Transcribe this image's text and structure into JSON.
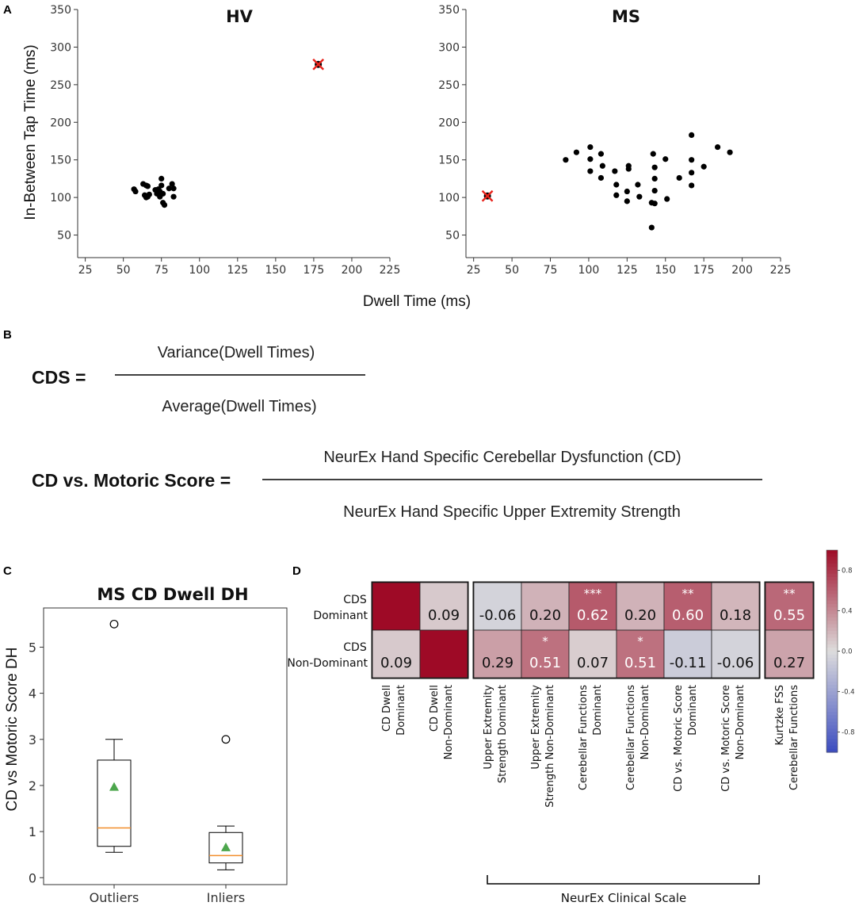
{
  "panels": {
    "A": "A",
    "B": "B",
    "C": "C",
    "D": "D"
  },
  "panel_a": {
    "shared_xlabel": "Dwell Time (ms)",
    "shared_ylabel": "In-Between Tap Time (ms)",
    "outlier_color": "#e8231b",
    "point_color": "#000000"
  },
  "formulas": {
    "cds_lhs": "CDS =",
    "cds_numerator": "Variance(Dwell Times)",
    "cds_denominator": "Average(Dwell Times)",
    "cdm_lhs": "CD vs. Motoric Score =",
    "cdm_numerator": "NeurEx Hand Specific Cerebellar Dysfunction (CD)",
    "cdm_denominator": "NeurEx Hand Specific Upper Extremity Strength"
  },
  "panel_d": {
    "bracket_label": "NeurEx Clinical Scale",
    "colors": {
      "pos": "#9e0a26",
      "neu": "#dddcdc",
      "neg": "#3b4cc0"
    }
  },
  "chart_data": [
    {
      "id": "hv",
      "type": "scatter",
      "title": "HV",
      "xlabel": "Dwell Time (ms)",
      "ylabel": "In-Between Tap Time (ms)",
      "xlim": [
        20,
        225
      ],
      "ylim": [
        20,
        350
      ],
      "xticks": [
        "25",
        "50",
        "75",
        "100",
        "125",
        "150",
        "175",
        "200",
        "225"
      ],
      "yticks": [
        "50",
        "100",
        "150",
        "200",
        "250",
        "300",
        "350"
      ],
      "points": [
        [
          57,
          111
        ],
        [
          58,
          108
        ],
        [
          63,
          118
        ],
        [
          65,
          116
        ],
        [
          66,
          115
        ],
        [
          64,
          103
        ],
        [
          65,
          100
        ],
        [
          67,
          104
        ],
        [
          66,
          101
        ],
        [
          71,
          110
        ],
        [
          72,
          105
        ],
        [
          73,
          111
        ],
        [
          74,
          108
        ],
        [
          75,
          125
        ],
        [
          75,
          116
        ],
        [
          76,
          105
        ],
        [
          74,
          101
        ],
        [
          76,
          93
        ],
        [
          77,
          90
        ],
        [
          80,
          112
        ],
        [
          82,
          118
        ],
        [
          83,
          112
        ],
        [
          83,
          101
        ]
      ],
      "outliers": [
        [
          178,
          277
        ]
      ]
    },
    {
      "id": "ms",
      "type": "scatter",
      "title": "MS",
      "xlabel": "Dwell Time (ms)",
      "ylabel": "",
      "xlim": [
        20,
        225
      ],
      "ylim": [
        20,
        350
      ],
      "xticks": [
        "25",
        "50",
        "75",
        "100",
        "125",
        "150",
        "175",
        "200",
        "225"
      ],
      "yticks": [
        "50",
        "100",
        "150",
        "200",
        "250",
        "300",
        "350"
      ],
      "points": [
        [
          85,
          150
        ],
        [
          92,
          160
        ],
        [
          101,
          167
        ],
        [
          101,
          135
        ],
        [
          101,
          151
        ],
        [
          108,
          158
        ],
        [
          108,
          126
        ],
        [
          109,
          142
        ],
        [
          117,
          135
        ],
        [
          118,
          117
        ],
        [
          118,
          103
        ],
        [
          125,
          95
        ],
        [
          125,
          108
        ],
        [
          126,
          142
        ],
        [
          126,
          138
        ],
        [
          132,
          117
        ],
        [
          133,
          101
        ],
        [
          141,
          60
        ],
        [
          141,
          93
        ],
        [
          143,
          92
        ],
        [
          142,
          158
        ],
        [
          143,
          140
        ],
        [
          143,
          125
        ],
        [
          143,
          109
        ],
        [
          150,
          151
        ],
        [
          151,
          98
        ],
        [
          159,
          126
        ],
        [
          167,
          183
        ],
        [
          167,
          150
        ],
        [
          167,
          133
        ],
        [
          167,
          116
        ],
        [
          175,
          141
        ],
        [
          184,
          167
        ],
        [
          192,
          160
        ]
      ],
      "outliers": [
        [
          34,
          102
        ]
      ]
    },
    {
      "id": "box",
      "type": "box",
      "title": "MS CD Dwell DH",
      "xlabel": "",
      "ylabel": "CD vs Motoric Score DH",
      "ylim": [
        -0.15,
        5.85
      ],
      "yticks": [
        "0",
        "1",
        "2",
        "3",
        "4",
        "5"
      ],
      "categories": [
        "Outliers",
        "Inliers"
      ],
      "boxes": [
        {
          "name": "Outliers",
          "q1": 0.68,
          "median": 1.08,
          "q3": 2.55,
          "whisker_low": 0.55,
          "whisker_high": 3.0,
          "mean": 1.97,
          "fliers": [
            5.5
          ]
        },
        {
          "name": "Inliers",
          "q1": 0.32,
          "median": 0.48,
          "q3": 0.98,
          "whisker_low": 0.17,
          "whisker_high": 1.12,
          "mean": 0.66,
          "fliers": [
            3.0
          ]
        }
      ],
      "median_color": "#f28e2b",
      "mean_color": "#4ca64c"
    },
    {
      "id": "corr",
      "type": "heatmap",
      "title": "",
      "rows": [
        "CDS Dominant",
        "CDS Non-Dominant"
      ],
      "columns": [
        [
          "CD Dwell",
          "Dominant"
        ],
        [
          "CD Dwell",
          "Non-Dominant"
        ],
        [
          "Upper Extremity",
          "Strength Dominant"
        ],
        [
          "Upper Extremity",
          "Strength Non-Dominant"
        ],
        [
          "Cerebellar Functions",
          "Dominant"
        ],
        [
          "Cerebellar Functions",
          "Non-Dominant"
        ],
        [
          "CD vs. Motoric Score",
          "Dominant"
        ],
        [
          "CD vs. Motoric Score",
          "Non-Dominant"
        ],
        [
          "Kurtzke FSS",
          "Cerebellar Functions"
        ]
      ],
      "groups": [
        [
          0,
          1
        ],
        [
          2,
          7
        ],
        [
          8,
          8
        ]
      ],
      "values": [
        [
          1.0,
          0.09,
          -0.06,
          0.2,
          0.62,
          0.2,
          0.6,
          0.18,
          0.55
        ],
        [
          0.09,
          1.0,
          0.29,
          0.51,
          0.07,
          0.51,
          -0.11,
          -0.06,
          0.27
        ]
      ],
      "labels": [
        [
          "",
          "0.09",
          "-0.06",
          "0.20",
          "0.62",
          "0.20",
          "0.60",
          "0.18",
          "0.55"
        ],
        [
          "0.09",
          "",
          "0.29",
          "0.51",
          "0.07",
          "0.51",
          "-0.11",
          "-0.06",
          "0.27"
        ]
      ],
      "stars": [
        [
          "",
          "",
          "",
          "",
          "***",
          "",
          "**",
          "",
          "**"
        ],
        [
          "",
          "",
          "",
          "*",
          "",
          "*",
          "",
          "",
          ""
        ]
      ],
      "vmin": -1.0,
      "vmax": 1.0,
      "colorbar_ticks": [
        "0.8",
        "0.4",
        "0.0",
        "-0.4",
        "-0.8"
      ]
    }
  ]
}
